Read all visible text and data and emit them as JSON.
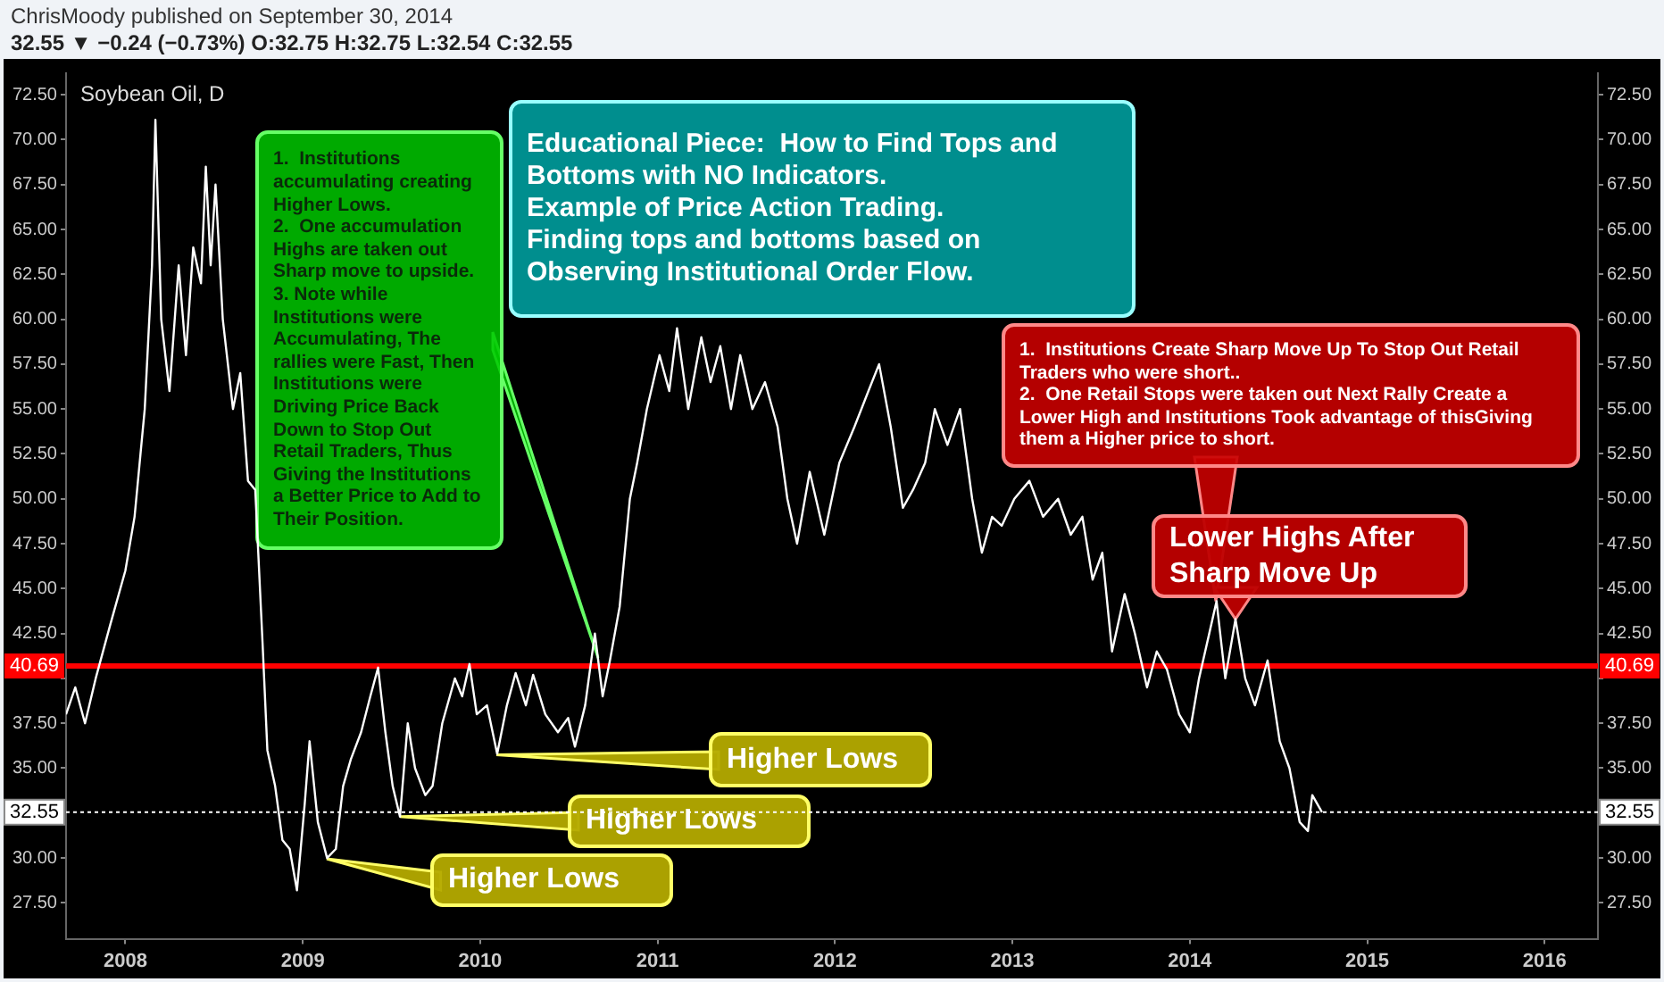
{
  "chart_data": {
    "type": "line",
    "title": "Soybean Oil, D",
    "annotations": [
      "ChrisMoody published on September 30, 2014",
      "32.55 ▼ −0.24 (−0.73%) O:32.75 H:32.75 L:32.54 C:32.55",
      "Educational Piece:  How to Find Tops and Bottoms with NO Indicators.\nExample of Price Action Trading.\nFinding tops and bottoms based on Observing Institutional Order Flow.",
      "1.  Institutions accumulating creating Higher Lows.\n2.  One accumulation Highs are taken out Sharp move to upside.\n3. Note while Institutions were Accumulating, The rallies were Fast, Then Institutions were Driving Price Back Down to Stop Out Retail Traders, Thus Giving the Institutions a Better Price to Add to Their Position.",
      {
        "text": "1.  Institutions Create Sharp Move Up To Stop Out Retail Traders who were short..\n2.  One Retail Stops were taken out Next Rally Create a Lower High and Institutions Took advantage of thisGiving them a Higher price to short.",
        "x": "2014-02-25",
        "y": 44.3
      },
      {
        "text": "Lower Highs After Sharp Move Up",
        "x": "2014-04-05",
        "y": 43.3
      },
      {
        "text": "Higher Lows",
        "x": "2010-02-05",
        "y": 35.8
      },
      {
        "text": "Higher Lows",
        "x": "2009-07-20",
        "y": 32.3
      },
      {
        "text": "Higher Lows",
        "x": "2009-02-20",
        "y": 30
      }
    ],
    "x": [
      "2007-09-01",
      "2007-09-20",
      "2007-10-10",
      "2007-11-01",
      "2007-12-01",
      "2008-01-01",
      "2008-01-20",
      "2008-02-10",
      "2008-02-25",
      "2008-03-03",
      "2008-03-15",
      "2008-04-01",
      "2008-04-20",
      "2008-05-05",
      "2008-05-20",
      "2008-06-05",
      "2008-06-15",
      "2008-06-25",
      "2008-07-05",
      "2008-07-20",
      "2008-08-10",
      "2008-08-25",
      "2008-09-10",
      "2008-09-25",
      "2008-10-10",
      "2008-10-20",
      "2008-11-05",
      "2008-11-20",
      "2008-12-05",
      "2008-12-20",
      "2009-01-05",
      "2009-01-15",
      "2009-02-01",
      "2009-02-20",
      "2009-03-10",
      "2009-03-25",
      "2009-04-10",
      "2009-05-01",
      "2009-05-20",
      "2009-06-05",
      "2009-06-20",
      "2009-07-05",
      "2009-07-20",
      "2009-08-05",
      "2009-08-20",
      "2009-09-10",
      "2009-09-25",
      "2009-10-15",
      "2009-11-10",
      "2009-11-25",
      "2009-12-10",
      "2009-12-25",
      "2010-01-15",
      "2010-02-05",
      "2010-02-25",
      "2010-03-15",
      "2010-04-05",
      "2010-04-20",
      "2010-05-15",
      "2010-06-10",
      "2010-07-01",
      "2010-07-15",
      "2010-08-05",
      "2010-08-25",
      "2010-09-10",
      "2010-09-25",
      "2010-10-15",
      "2010-11-05",
      "2010-11-20",
      "2010-12-10",
      "2011-01-05",
      "2011-01-25",
      "2011-02-10",
      "2011-03-05",
      "2011-04-01",
      "2011-04-20",
      "2011-05-10",
      "2011-06-01",
      "2011-06-20",
      "2011-07-15",
      "2011-08-10",
      "2011-09-05",
      "2011-09-25",
      "2011-10-15",
      "2011-11-10",
      "2011-12-10",
      "2012-01-10",
      "2012-02-10",
      "2012-03-10",
      "2012-04-01",
      "2012-04-25",
      "2012-05-20",
      "2012-06-10",
      "2012-07-05",
      "2012-07-25",
      "2012-08-20",
      "2012-09-15",
      "2012-10-10",
      "2012-10-30",
      "2012-11-20",
      "2012-12-10",
      "2013-01-05",
      "2013-02-05",
      "2013-03-05",
      "2013-04-05",
      "2013-05-01",
      "2013-05-25",
      "2013-06-15",
      "2013-07-05",
      "2013-07-25",
      "2013-08-20",
      "2013-09-10",
      "2013-10-05",
      "2013-10-25",
      "2013-11-15",
      "2013-12-10",
      "2014-01-01",
      "2014-01-20",
      "2014-02-10",
      "2014-02-25",
      "2014-03-15",
      "2014-04-05",
      "2014-04-25",
      "2014-05-15",
      "2014-06-10",
      "2014-07-05",
      "2014-07-25",
      "2014-08-15",
      "2014-09-01",
      "2014-09-10",
      "2014-09-30"
    ],
    "series": [
      {
        "color": "#ffffff",
        "values": [
          38,
          39.5,
          37.5,
          40,
          43,
          46,
          49,
          55,
          63,
          71.1,
          60,
          56,
          63,
          58,
          64,
          62,
          68.5,
          63,
          67.5,
          60,
          55,
          57,
          51,
          50.5,
          42,
          36,
          34,
          31,
          30.5,
          28.2,
          33,
          36.5,
          32,
          30,
          30.5,
          34,
          35.5,
          37,
          39,
          40.6,
          37,
          34,
          32.3,
          37.5,
          35,
          33.5,
          34,
          37.5,
          40,
          39,
          40.8,
          38,
          38.5,
          35.8,
          38.5,
          40.3,
          38.5,
          40.2,
          38,
          37,
          37.8,
          36.2,
          38.5,
          42.5,
          39,
          41,
          44,
          50,
          52,
          55,
          58,
          56,
          59.5,
          55,
          59,
          56.5,
          58.5,
          55,
          58,
          55,
          56.5,
          54,
          50,
          47.5,
          51.5,
          48,
          52,
          54,
          56,
          57.5,
          54,
          49.5,
          50.5,
          52,
          55,
          53,
          55,
          50,
          47,
          49,
          48.5,
          50,
          51,
          49,
          50,
          48,
          49,
          45.5,
          47,
          41.5,
          44.7,
          42.5,
          39.5,
          41.5,
          40.5,
          38,
          37,
          40,
          42.5,
          44.3,
          40,
          43.3,
          40,
          38.5,
          41,
          36.5,
          35,
          32,
          31.5,
          33.5,
          32.55
        ]
      }
    ],
    "xlim": [
      "2007-09-01",
      "2016-04-20"
    ],
    "xticks": [
      "2008",
      "2009",
      "2010",
      "2011",
      "2012",
      "2013",
      "2014",
      "2015",
      "2016"
    ],
    "ylim": [
      25.5,
      73.7
    ],
    "yticks": [
      {
        "value": 27.5,
        "label": "27.50"
      },
      {
        "value": 30,
        "label": "30.00"
      },
      {
        "value": 32.5,
        "label": null
      },
      {
        "value": 35,
        "label": "35.00"
      },
      {
        "value": 37.5,
        "label": "37.50"
      },
      {
        "value": 40,
        "label": null
      },
      {
        "value": 42.5,
        "label": "42.50"
      },
      {
        "value": 45,
        "label": "45.00"
      },
      {
        "value": 47.5,
        "label": "47.50"
      },
      {
        "value": 50,
        "label": "50.00"
      },
      {
        "value": 52.5,
        "label": "52.50"
      },
      {
        "value": 55,
        "label": "55.00"
      },
      {
        "value": 57.5,
        "label": "57.50"
      },
      {
        "value": 60,
        "label": "60.00"
      },
      {
        "value": 62.5,
        "label": "62.50"
      },
      {
        "value": 65,
        "label": "65.00"
      },
      {
        "value": 67.5,
        "label": "67.50"
      },
      {
        "value": 70,
        "label": "70.00"
      },
      {
        "value": 72.5,
        "label": "72.50"
      }
    ],
    "y2lim": [
      25.5,
      73.7
    ],
    "y2ticks": [
      {
        "value": 27.5,
        "label": "27.50"
      },
      {
        "value": 30,
        "label": "30.00"
      },
      {
        "value": 32.5,
        "label": null
      },
      {
        "value": 35,
        "label": "35.00"
      },
      {
        "value": 37.5,
        "label": "37.50"
      },
      {
        "value": 40,
        "label": null
      },
      {
        "value": 42.5,
        "label": "42.50"
      },
      {
        "value": 45,
        "label": "45.00"
      },
      {
        "value": 47.5,
        "label": "47.50"
      },
      {
        "value": 50,
        "label": "50.00"
      },
      {
        "value": 52.5,
        "label": "52.50"
      },
      {
        "value": 55,
        "label": "55.00"
      },
      {
        "value": 57.5,
        "label": "57.50"
      },
      {
        "value": 60,
        "label": "60.00"
      },
      {
        "value": 62.5,
        "label": "62.50"
      },
      {
        "value": 65,
        "label": "65.00"
      },
      {
        "value": 67.5,
        "label": "67.50"
      },
      {
        "value": 70,
        "label": "70.00"
      },
      {
        "value": 72.5,
        "label": "72.50"
      }
    ],
    "ref_lines": [
      {
        "axis": "y",
        "value": 40.69,
        "label": "40.69",
        "color": "#ff0000",
        "line_style": "solid"
      },
      {
        "axis": "y",
        "value": 32.55,
        "label": "32.55",
        "color": "#ffffff",
        "line_style": "dotted"
      }
    ],
    "grid": false,
    "legend": false,
    "marker": "none",
    "line_style": "solid"
  }
}
